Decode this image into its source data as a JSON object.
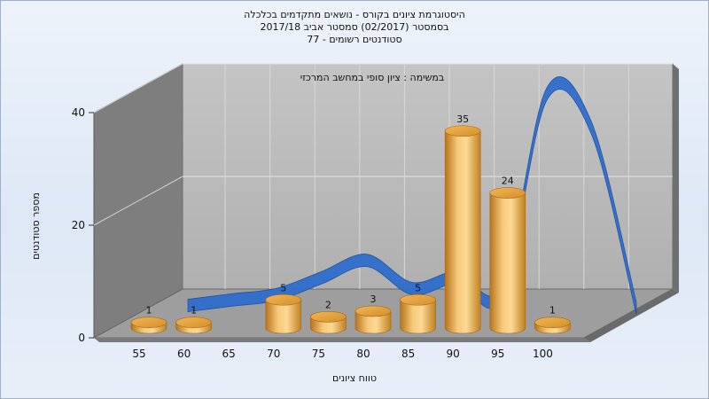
{
  "title_lines": [
    "היסטוגרמת ציונים בקורס - נושאים מתקדמים בכלכלה",
    "בסמסטר (02/2017) סמסטר אביב 2017/18",
    "סטודנטים רשומים - 77"
  ],
  "colors": {
    "bar": "#e8a53c",
    "curve": "#2f6dcc",
    "back_wall": "#b9b9b9",
    "side_wall": "#7c7c7c",
    "floor": "#9a9a9a"
  },
  "chart_data": {
    "type": "bar",
    "subtitle": "במשימה : ציון סופי במחשב המרכזי",
    "categories": [
      "55",
      "60",
      "65",
      "70",
      "75",
      "80",
      "85",
      "90",
      "95",
      "100"
    ],
    "values": [
      1,
      1,
      null,
      5,
      2,
      3,
      5,
      35,
      24,
      1
    ],
    "data_labels": [
      "1",
      "1",
      "",
      "5",
      "2",
      "3",
      "5",
      "35",
      "24",
      "1"
    ],
    "xlabel": "טווח ציונים",
    "ylabel": "מספר סטודנטים",
    "yticks": [
      0,
      20,
      40
    ],
    "ylim": [
      0,
      40
    ],
    "grid": true,
    "curve": {
      "type": "line",
      "x": [
        55,
        60,
        65,
        70,
        75,
        80,
        85,
        90,
        95,
        100,
        105
      ],
      "values": [
        0.5,
        1.5,
        2.5,
        5.5,
        8.5,
        3.5,
        5.5,
        3,
        38,
        32,
        0
      ]
    }
  }
}
